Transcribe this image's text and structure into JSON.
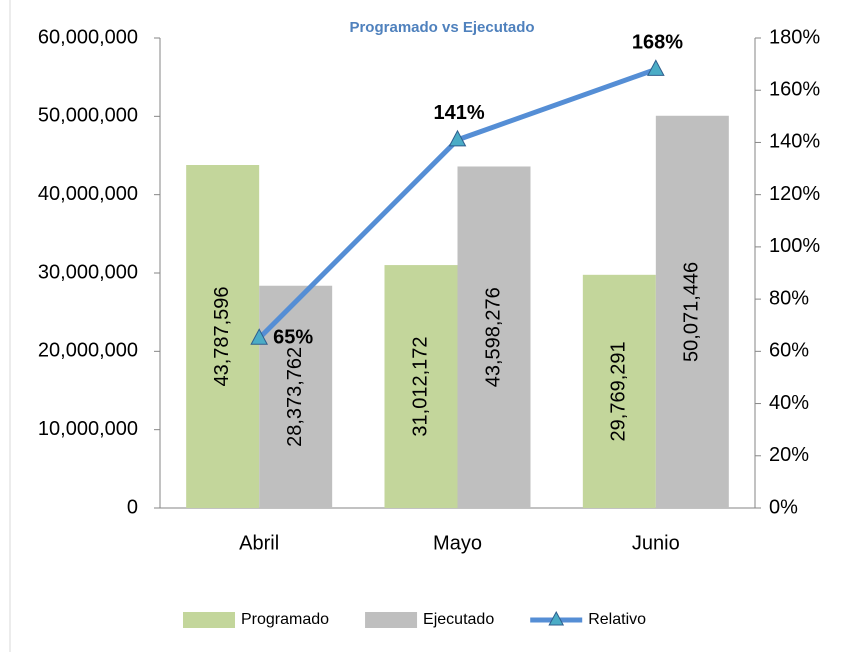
{
  "chart_data": {
    "type": "bar_line",
    "title": "Programado vs Ejecutado",
    "categories": [
      "Abril",
      "Mayo",
      "Junio"
    ],
    "series": [
      {
        "name": "Programado",
        "type": "bar",
        "color": "#c3d69b",
        "values": [
          43787596,
          31012172,
          29769291
        ],
        "value_labels": [
          "43,787,596",
          "31,012,172",
          "29,769,291"
        ]
      },
      {
        "name": "Ejecutado",
        "type": "bar",
        "color": "#bfbfbf",
        "values": [
          28373762,
          43598276,
          50071446
        ],
        "value_labels": [
          "28,373,762",
          "43,598,276",
          "50,071,446"
        ]
      },
      {
        "name": "Relativo",
        "type": "line",
        "axis": "y2",
        "color": "#558ed5",
        "marker_color": "#4bacc6",
        "values": [
          65,
          141,
          168
        ],
        "value_labels": [
          "65%",
          "141%",
          "168%"
        ]
      }
    ],
    "ylim": [
      0,
      60000000
    ],
    "yticks": [
      0,
      {
        "value": 10000000,
        "label": "10,000,000"
      },
      {
        "value": 20000000,
        "label": "20,000,000"
      },
      {
        "value": 30000000,
        "label": "30,000,000"
      },
      {
        "value": 40000000,
        "label": "40,000,000"
      },
      {
        "value": 50000000,
        "label": "50,000,000"
      },
      {
        "value": 60000000,
        "label": "60,000,000"
      }
    ],
    "y2lim": [
      0,
      180
    ],
    "y2ticks": [
      {
        "value": 0,
        "label": "0%"
      },
      {
        "value": 20,
        "label": "20%"
      },
      {
        "value": 40,
        "label": "40%"
      },
      {
        "value": 60,
        "label": "60%"
      },
      {
        "value": 80,
        "label": "80%"
      },
      {
        "value": 100,
        "label": "100%"
      },
      {
        "value": 120,
        "label": "120%"
      },
      {
        "value": 140,
        "label": "140%"
      },
      {
        "value": 160,
        "label": "160%"
      },
      {
        "value": 180,
        "label": "180%"
      }
    ],
    "grid": false,
    "legend": "bottom"
  }
}
